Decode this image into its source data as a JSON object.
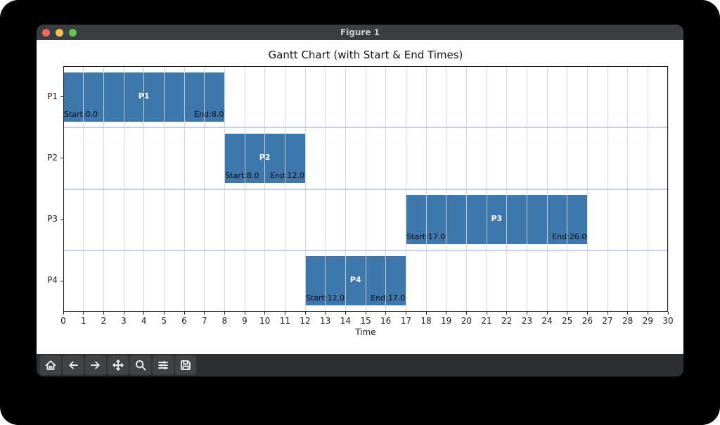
{
  "window": {
    "title": "Figure 1",
    "controls": [
      {
        "name": "close",
        "color": "#ec6a5f"
      },
      {
        "name": "minimize",
        "color": "#f4bf50"
      },
      {
        "name": "zoom",
        "color": "#61c554"
      }
    ],
    "titlebar_color": "#3a3e40"
  },
  "chart_data": {
    "type": "bar",
    "variant": "gantt-horizontal",
    "title": "Gantt Chart (with Start & End Times)",
    "xlabel": "Time",
    "ylabel": "",
    "xlim": [
      0,
      30
    ],
    "x_ticks": [
      "0",
      "1",
      "2",
      "3",
      "4",
      "5",
      "6",
      "7",
      "8",
      "9",
      "10",
      "11",
      "12",
      "13",
      "14",
      "15",
      "16",
      "17",
      "18",
      "19",
      "20",
      "21",
      "22",
      "23",
      "24",
      "25",
      "26",
      "27",
      "28",
      "29",
      "30"
    ],
    "grid": true,
    "legend": "none",
    "rows": [
      {
        "label": "P1",
        "start": 0.0,
        "end": 8.0,
        "start_label": "Start:0.0",
        "end_label": "End:8.0"
      },
      {
        "label": "P2",
        "start": 8.0,
        "end": 12.0,
        "start_label": "Start:8.0",
        "end_label": "End:12.0"
      },
      {
        "label": "P3",
        "start": 17.0,
        "end": 26.0,
        "start_label": "Start:17.0",
        "end_label": "End:26.0"
      },
      {
        "label": "P4",
        "start": 12.0,
        "end": 17.0,
        "start_label": "Start:12.0",
        "end_label": "End:17.0"
      }
    ],
    "colors": {
      "bar": "#3e76ae",
      "grid": "#d4d4d4",
      "row_separator": "#bfd4e8",
      "bar_label_text": "#ffffff",
      "annotation_text": "#0d0d0d"
    }
  },
  "toolbar": {
    "buttons": [
      {
        "name": "home",
        "icon": "home-icon"
      },
      {
        "name": "back",
        "icon": "arrow-left-icon"
      },
      {
        "name": "forward",
        "icon": "arrow-right-icon"
      },
      {
        "name": "pan",
        "icon": "move-icon"
      },
      {
        "name": "zoom",
        "icon": "magnifier-icon"
      },
      {
        "name": "subplots",
        "icon": "sliders-icon"
      },
      {
        "name": "save",
        "icon": "save-icon"
      }
    ]
  }
}
